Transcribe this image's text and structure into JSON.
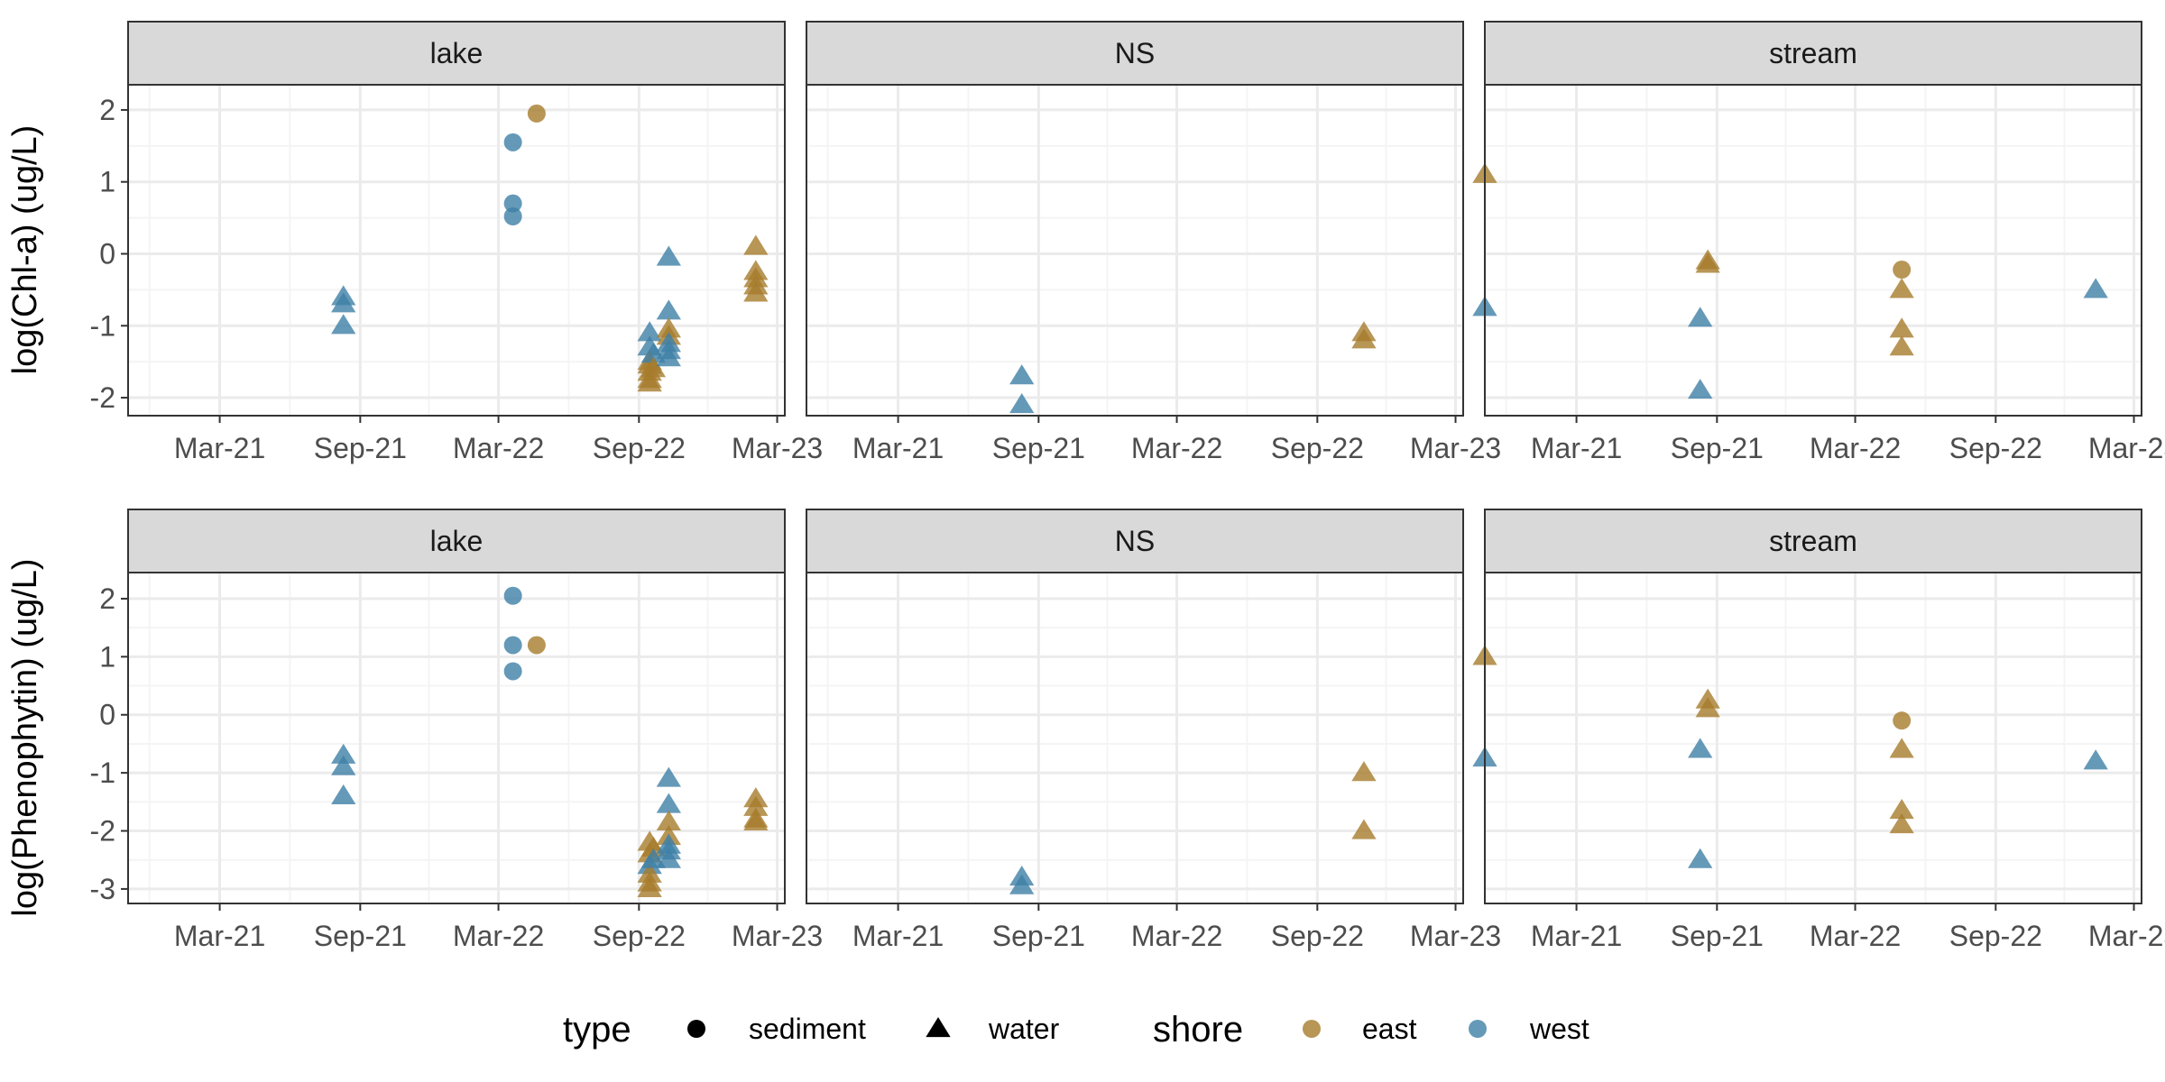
{
  "chart_data": {
    "type": "scatter",
    "facet_rows": [
      {
        "key": "chla",
        "ylabel": "log(Chl-a) (ug/L)",
        "ylim": [
          -2.25,
          2.35
        ],
        "yticks": [
          -2,
          -1,
          0,
          1,
          2
        ]
      },
      {
        "key": "phe",
        "ylabel": "log(Phenophytin) (ug/L)",
        "ylim": [
          -3.25,
          2.45
        ],
        "yticks": [
          -3,
          -2,
          -1,
          0,
          1,
          2
        ]
      }
    ],
    "facet_cols": [
      "lake",
      "NS",
      "stream"
    ],
    "x_tick_labels": [
      "Mar-21",
      "Sep-21",
      "Mar-22",
      "Sep-22",
      "Mar-23"
    ],
    "x_tick_values": [
      "2021-03-01",
      "2021-09-01",
      "2022-03-01",
      "2022-09-01",
      "2023-03-01"
    ],
    "panel_x_ranges": {
      "lake": [
        "2020-11-01",
        "2023-03-11"
      ],
      "NS": [
        "2020-11-01",
        "2023-03-11"
      ],
      "stream": [
        "2020-11-01",
        "2023-03-11"
      ]
    },
    "grid": true,
    "legend": {
      "position": "bottom",
      "type_title": "type",
      "type_items": [
        {
          "label": "sediment",
          "shape": "circle"
        },
        {
          "label": "water",
          "shape": "triangle"
        }
      ],
      "shore_title": "shore",
      "shore_items": [
        {
          "label": "east",
          "color": "#a67c2c"
        },
        {
          "label": "west",
          "color": "#3f7fa6"
        }
      ]
    },
    "colors": {
      "east": "#a67c2c",
      "west": "#3f7fa6"
    },
    "points": {
      "chla": {
        "lake": [
          {
            "date": "2021-08-10",
            "y": -0.6,
            "type": "water",
            "shore": "west"
          },
          {
            "date": "2021-08-10",
            "y": -0.7,
            "type": "water",
            "shore": "west"
          },
          {
            "date": "2021-08-10",
            "y": -1.0,
            "type": "water",
            "shore": "west"
          },
          {
            "date": "2022-03-20",
            "y": 1.55,
            "type": "sediment",
            "shore": "west"
          },
          {
            "date": "2022-03-20",
            "y": 0.7,
            "type": "sediment",
            "shore": "west"
          },
          {
            "date": "2022-03-20",
            "y": 0.52,
            "type": "sediment",
            "shore": "west"
          },
          {
            "date": "2022-04-20",
            "y": 1.95,
            "type": "sediment",
            "shore": "east"
          },
          {
            "date": "2022-09-15",
            "y": -1.1,
            "type": "water",
            "shore": "west"
          },
          {
            "date": "2022-09-15",
            "y": -1.3,
            "type": "water",
            "shore": "west"
          },
          {
            "date": "2022-09-15",
            "y": -1.5,
            "type": "water",
            "shore": "east"
          },
          {
            "date": "2022-09-15",
            "y": -1.55,
            "type": "water",
            "shore": "east"
          },
          {
            "date": "2022-09-15",
            "y": -1.65,
            "type": "water",
            "shore": "east"
          },
          {
            "date": "2022-09-15",
            "y": -1.75,
            "type": "water",
            "shore": "east"
          },
          {
            "date": "2022-09-15",
            "y": -1.8,
            "type": "water",
            "shore": "east"
          },
          {
            "date": "2022-09-20",
            "y": -1.4,
            "type": "water",
            "shore": "west"
          },
          {
            "date": "2022-09-20",
            "y": -1.6,
            "type": "water",
            "shore": "east"
          },
          {
            "date": "2022-10-10",
            "y": -0.05,
            "type": "water",
            "shore": "west"
          },
          {
            "date": "2022-10-10",
            "y": -0.8,
            "type": "water",
            "shore": "west"
          },
          {
            "date": "2022-10-10",
            "y": -1.05,
            "type": "water",
            "shore": "east"
          },
          {
            "date": "2022-10-10",
            "y": -1.15,
            "type": "water",
            "shore": "east"
          },
          {
            "date": "2022-10-10",
            "y": -1.25,
            "type": "water",
            "shore": "west"
          },
          {
            "date": "2022-10-10",
            "y": -1.35,
            "type": "water",
            "shore": "west"
          },
          {
            "date": "2022-10-10",
            "y": -1.45,
            "type": "water",
            "shore": "west"
          },
          {
            "date": "2023-02-01",
            "y": 0.1,
            "type": "water",
            "shore": "east"
          },
          {
            "date": "2023-02-01",
            "y": -0.25,
            "type": "water",
            "shore": "east"
          },
          {
            "date": "2023-02-01",
            "y": -0.35,
            "type": "water",
            "shore": "east"
          },
          {
            "date": "2023-02-01",
            "y": -0.45,
            "type": "water",
            "shore": "east"
          },
          {
            "date": "2023-02-01",
            "y": -0.55,
            "type": "water",
            "shore": "east"
          }
        ],
        "NS": [
          {
            "date": "2021-08-10",
            "y": -1.7,
            "type": "water",
            "shore": "west"
          },
          {
            "date": "2021-08-10",
            "y": -2.1,
            "type": "water",
            "shore": "west"
          },
          {
            "date": "2022-11-01",
            "y": -1.1,
            "type": "water",
            "shore": "east"
          },
          {
            "date": "2022-11-01",
            "y": -1.2,
            "type": "water",
            "shore": "east"
          }
        ],
        "stream": [
          {
            "date": "2020-11-01",
            "y": 1.1,
            "type": "water",
            "shore": "east"
          },
          {
            "date": "2020-11-01",
            "y": -0.75,
            "type": "water",
            "shore": "west"
          },
          {
            "date": "2021-08-10",
            "y": -0.9,
            "type": "water",
            "shore": "west"
          },
          {
            "date": "2021-08-10",
            "y": -1.9,
            "type": "water",
            "shore": "west"
          },
          {
            "date": "2021-08-20",
            "y": -0.1,
            "type": "water",
            "shore": "east"
          },
          {
            "date": "2021-08-20",
            "y": -0.15,
            "type": "water",
            "shore": "east"
          },
          {
            "date": "2022-05-01",
            "y": -0.22,
            "type": "sediment",
            "shore": "east"
          },
          {
            "date": "2022-05-01",
            "y": -0.5,
            "type": "water",
            "shore": "east"
          },
          {
            "date": "2022-05-01",
            "y": -1.05,
            "type": "water",
            "shore": "east"
          },
          {
            "date": "2022-05-01",
            "y": -1.3,
            "type": "water",
            "shore": "east"
          },
          {
            "date": "2023-01-10",
            "y": -0.5,
            "type": "water",
            "shore": "west"
          }
        ]
      },
      "phe": {
        "lake": [
          {
            "date": "2021-08-10",
            "y": -0.7,
            "type": "water",
            "shore": "west"
          },
          {
            "date": "2021-08-10",
            "y": -0.9,
            "type": "water",
            "shore": "west"
          },
          {
            "date": "2021-08-10",
            "y": -1.4,
            "type": "water",
            "shore": "west"
          },
          {
            "date": "2022-03-20",
            "y": 2.05,
            "type": "sediment",
            "shore": "west"
          },
          {
            "date": "2022-03-20",
            "y": 1.2,
            "type": "sediment",
            "shore": "west"
          },
          {
            "date": "2022-03-20",
            "y": 0.75,
            "type": "sediment",
            "shore": "west"
          },
          {
            "date": "2022-04-20",
            "y": 1.2,
            "type": "sediment",
            "shore": "east"
          },
          {
            "date": "2022-09-15",
            "y": -2.2,
            "type": "water",
            "shore": "east"
          },
          {
            "date": "2022-09-15",
            "y": -2.4,
            "type": "water",
            "shore": "east"
          },
          {
            "date": "2022-09-15",
            "y": -2.6,
            "type": "water",
            "shore": "west"
          },
          {
            "date": "2022-09-15",
            "y": -2.75,
            "type": "water",
            "shore": "east"
          },
          {
            "date": "2022-09-15",
            "y": -2.9,
            "type": "water",
            "shore": "east"
          },
          {
            "date": "2022-09-15",
            "y": -3.0,
            "type": "water",
            "shore": "east"
          },
          {
            "date": "2022-09-20",
            "y": -2.3,
            "type": "water",
            "shore": "east"
          },
          {
            "date": "2022-09-20",
            "y": -2.5,
            "type": "water",
            "shore": "west"
          },
          {
            "date": "2022-10-10",
            "y": -1.1,
            "type": "water",
            "shore": "west"
          },
          {
            "date": "2022-10-10",
            "y": -1.55,
            "type": "water",
            "shore": "west"
          },
          {
            "date": "2022-10-10",
            "y": -1.85,
            "type": "water",
            "shore": "east"
          },
          {
            "date": "2022-10-10",
            "y": -2.1,
            "type": "water",
            "shore": "east"
          },
          {
            "date": "2022-10-10",
            "y": -2.25,
            "type": "water",
            "shore": "west"
          },
          {
            "date": "2022-10-10",
            "y": -2.35,
            "type": "water",
            "shore": "west"
          },
          {
            "date": "2022-10-10",
            "y": -2.5,
            "type": "water",
            "shore": "west"
          },
          {
            "date": "2023-02-01",
            "y": -1.45,
            "type": "water",
            "shore": "east"
          },
          {
            "date": "2023-02-01",
            "y": -1.6,
            "type": "water",
            "shore": "east"
          },
          {
            "date": "2023-02-01",
            "y": -1.8,
            "type": "water",
            "shore": "east"
          },
          {
            "date": "2023-02-01",
            "y": -1.85,
            "type": "water",
            "shore": "east"
          }
        ],
        "NS": [
          {
            "date": "2021-08-10",
            "y": -2.8,
            "type": "water",
            "shore": "west"
          },
          {
            "date": "2021-08-10",
            "y": -2.95,
            "type": "water",
            "shore": "west"
          },
          {
            "date": "2022-11-01",
            "y": -1.0,
            "type": "water",
            "shore": "east"
          },
          {
            "date": "2022-11-01",
            "y": -2.0,
            "type": "water",
            "shore": "east"
          }
        ],
        "stream": [
          {
            "date": "2020-11-01",
            "y": 1.0,
            "type": "water",
            "shore": "east"
          },
          {
            "date": "2020-11-01",
            "y": -0.75,
            "type": "water",
            "shore": "west"
          },
          {
            "date": "2021-08-10",
            "y": -0.6,
            "type": "water",
            "shore": "west"
          },
          {
            "date": "2021-08-10",
            "y": -2.5,
            "type": "water",
            "shore": "west"
          },
          {
            "date": "2021-08-20",
            "y": 0.25,
            "type": "water",
            "shore": "east"
          },
          {
            "date": "2021-08-20",
            "y": 0.1,
            "type": "water",
            "shore": "east"
          },
          {
            "date": "2022-05-01",
            "y": -0.1,
            "type": "sediment",
            "shore": "east"
          },
          {
            "date": "2022-05-01",
            "y": -0.6,
            "type": "water",
            "shore": "east"
          },
          {
            "date": "2022-05-01",
            "y": -1.65,
            "type": "water",
            "shore": "east"
          },
          {
            "date": "2022-05-01",
            "y": -1.9,
            "type": "water",
            "shore": "east"
          },
          {
            "date": "2023-01-10",
            "y": -0.8,
            "type": "water",
            "shore": "west"
          }
        ]
      }
    }
  }
}
